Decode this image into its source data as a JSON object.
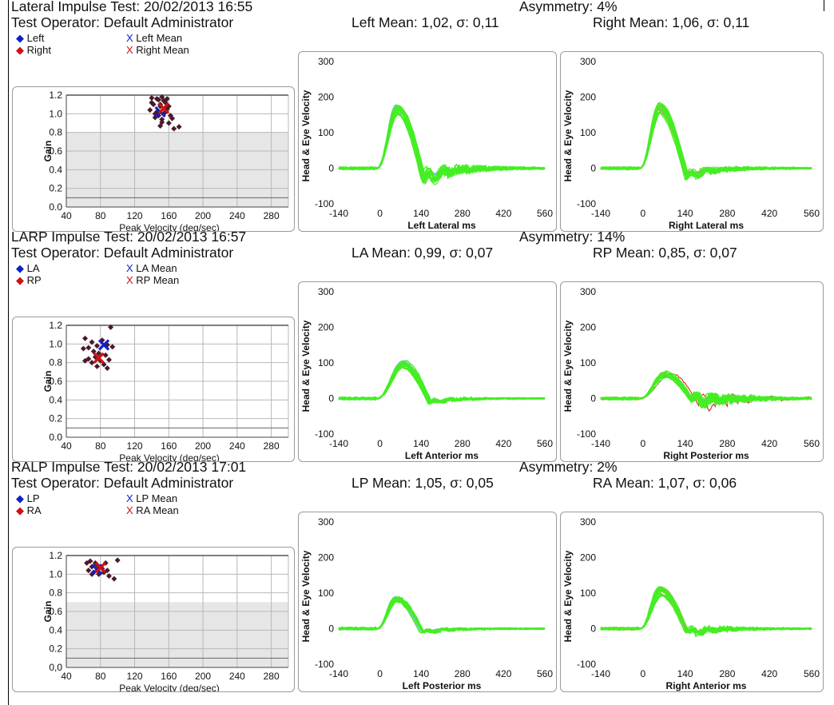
{
  "sections": [
    {
      "test_label": "Lateral Impulse Test:",
      "test_datetime": "20/02/2013 16:55",
      "operator_label": "Test Operator:",
      "operator_name": "Default Administrator",
      "asymmetry": "Asymmetry: 4%",
      "left_mean": "Left Mean: 1,02, σ: 0,11",
      "right_mean": "Right Mean: 1,06, σ: 0,11",
      "legend": [
        "Left",
        "Right",
        "Left Mean",
        "Right Mean"
      ],
      "left_xlabel": "Left Lateral ms",
      "right_xlabel": "Right Lateral ms"
    },
    {
      "test_label": "LARP Impulse Test:",
      "test_datetime": "20/02/2013 16:57",
      "operator_label": "Test Operator:",
      "operator_name": "Default Administrator",
      "asymmetry": "Asymmetry: 14%",
      "left_mean": "LA Mean: 0,99, σ: 0,07",
      "right_mean": "RP Mean: 0,85, σ: 0,07",
      "legend": [
        "LA",
        "RP",
        "LA Mean",
        "RP Mean"
      ],
      "left_xlabel": "Left Anterior ms",
      "right_xlabel": "Right Posterior ms"
    },
    {
      "test_label": "RALP Impulse Test:",
      "test_datetime": "20/02/2013 17:01",
      "operator_label": "Test Operator:",
      "operator_name": "Default Administrator",
      "asymmetry": "Asymmetry: 2%",
      "left_mean": "LP Mean: 1,05, σ: 0,05",
      "right_mean": "RA Mean: 1,07, σ: 0,06",
      "legend": [
        "LP",
        "RA",
        "LP Mean",
        "RA Mean"
      ],
      "left_xlabel": "Left Posterior ms",
      "right_xlabel": "Right Anterior ms"
    }
  ],
  "colors": {
    "left_marker": "#1020c8",
    "right_marker": "#d01010",
    "dot": "#4a1a2a",
    "left_traces": "#44ee22",
    "left_head": "#88bbee",
    "right_traces": "#44ee22",
    "right_head": "#e88866",
    "right_head_red": "#dd2222",
    "shade": "#e6e6e6"
  },
  "chart_data": [
    {
      "type": "scatter",
      "section": 0,
      "xlabel": "Peak Velocity (deg/sec)",
      "ylabel": "Gain",
      "x_ticks": [
        40,
        80,
        120,
        160,
        200,
        240,
        280
      ],
      "y_ticks": [
        "0.0",
        "0.2",
        "0.4",
        "0.6",
        "0.8",
        "1.0",
        "1.2"
      ],
      "xlim": [
        40,
        300
      ],
      "ylim": [
        0,
        1.2
      ],
      "shaded_below": 0.8,
      "series": [
        {
          "name": "Left",
          "points": [
            [
              140,
              1.17
            ],
            [
              148,
              1.15
            ],
            [
              152,
              1.18
            ],
            [
              156,
              1.12
            ],
            [
              142,
              1.1
            ],
            [
              150,
              1.08
            ],
            [
              158,
              1.05
            ],
            [
              146,
              1.02
            ],
            [
              154,
              1.0
            ],
            [
              162,
              0.98
            ],
            [
              144,
              0.96
            ],
            [
              152,
              0.94
            ],
            [
              160,
              0.9
            ],
            [
              150,
              0.87
            ],
            [
              172,
              0.86
            ],
            [
              138,
              1.04
            ]
          ]
        },
        {
          "name": "Right",
          "points": [
            [
              146,
              1.16
            ],
            [
              154,
              1.14
            ],
            [
              150,
              1.1
            ],
            [
              160,
              1.08
            ],
            [
              156,
              1.02
            ],
            [
              144,
              1.0
            ],
            [
              148,
              0.98
            ],
            [
              164,
              0.95
            ],
            [
              152,
              0.91
            ],
            [
              166,
              0.84
            ],
            [
              140,
              1.12
            ],
            [
              158,
              1.16
            ]
          ]
        }
      ],
      "means": [
        {
          "name": "Left Mean",
          "x": 150,
          "y": 1.02
        },
        {
          "name": "Right Mean",
          "x": 154,
          "y": 1.06
        }
      ]
    },
    {
      "type": "line",
      "section": 0,
      "side": "left",
      "ylabel": "Head & Eye Velocity",
      "x_ticks": [
        -140,
        0,
        140,
        280,
        420,
        560
      ],
      "y_ticks": [
        -100,
        0,
        100,
        200,
        300
      ],
      "xlim": [
        -140,
        560
      ],
      "ylim": [
        -100,
        300
      ],
      "peak": {
        "x": 60,
        "y": 170
      },
      "undershoot": -40,
      "oscillation": "high",
      "spread": 20
    },
    {
      "type": "line",
      "section": 0,
      "side": "right",
      "ylabel": "Head & Eye Velocity",
      "x_ticks": [
        -140,
        0,
        140,
        280,
        420,
        560
      ],
      "y_ticks": [
        -100,
        0,
        100,
        200,
        300
      ],
      "xlim": [
        -140,
        560
      ],
      "ylim": [
        -100,
        300
      ],
      "peak": {
        "x": 55,
        "y": 175
      },
      "undershoot": -30,
      "oscillation": "medium",
      "spread": 22
    },
    {
      "type": "scatter",
      "section": 1,
      "xlabel": "Peak Velocity (deg/sec)",
      "ylabel": "Gain",
      "x_ticks": [
        40,
        80,
        120,
        160,
        200,
        240,
        280
      ],
      "y_ticks": [
        "0.0",
        "0.2",
        "0.4",
        "0.6",
        "0.8",
        "1.0",
        "1.2"
      ],
      "xlim": [
        40,
        300
      ],
      "ylim": [
        0,
        1.2
      ],
      "shaded_below": 0.0,
      "series": [
        {
          "name": "LA",
          "points": [
            [
              62,
              1.06
            ],
            [
              70,
              1.02
            ],
            [
              76,
              0.98
            ],
            [
              66,
              0.96
            ],
            [
              82,
              1.04
            ],
            [
              88,
              0.99
            ],
            [
              94,
              0.97
            ],
            [
              72,
              0.92
            ],
            [
              78,
              0.9
            ],
            [
              60,
              0.95
            ],
            [
              92,
              1.18
            ]
          ]
        },
        {
          "name": "RP",
          "points": [
            [
              66,
              0.84
            ],
            [
              74,
              0.86
            ],
            [
              80,
              0.82
            ],
            [
              86,
              0.88
            ],
            [
              70,
              0.8
            ],
            [
              84,
              0.78
            ],
            [
              88,
              0.74
            ],
            [
              76,
              0.76
            ],
            [
              90,
              0.83
            ],
            [
              62,
              0.82
            ]
          ]
        }
      ],
      "means": [
        {
          "name": "LA Mean",
          "x": 84,
          "y": 0.99
        },
        {
          "name": "RP Mean",
          "x": 78,
          "y": 0.85
        }
      ]
    },
    {
      "type": "line",
      "section": 1,
      "side": "left",
      "ylabel": "Head & Eye Velocity",
      "x_ticks": [
        -140,
        0,
        140,
        280,
        420,
        560
      ],
      "y_ticks": [
        -100,
        0,
        100,
        200,
        300
      ],
      "xlim": [
        -140,
        560
      ],
      "ylim": [
        -100,
        300
      ],
      "peak": {
        "x": 80,
        "y": 100
      },
      "undershoot": -15,
      "oscillation": "low",
      "spread": 14
    },
    {
      "type": "line",
      "section": 1,
      "side": "right",
      "ylabel": "Head & Eye Velocity",
      "x_ticks": [
        -140,
        0,
        140,
        280,
        420,
        560
      ],
      "y_ticks": [
        -100,
        0,
        100,
        200,
        300
      ],
      "xlim": [
        -140,
        560
      ],
      "ylim": [
        -100,
        300
      ],
      "peak": {
        "x": 75,
        "y": 70
      },
      "undershoot": -10,
      "oscillation": "high",
      "spread": 12
    },
    {
      "type": "scatter",
      "section": 2,
      "xlabel": "Peak Velocity (deg/sec)",
      "ylabel": "Gain",
      "x_ticks": [
        40,
        80,
        120,
        160,
        200,
        240,
        280
      ],
      "y_ticks": [
        "0,0",
        "0.2",
        "0.4",
        "0.6",
        "0.8",
        "1.0",
        "1.2"
      ],
      "xlim": [
        40,
        300
      ],
      "ylim": [
        0,
        1.2
      ],
      "shaded_below": 0.7,
      "series": [
        {
          "name": "LP",
          "points": [
            [
              64,
              1.12
            ],
            [
              70,
              1.08
            ],
            [
              76,
              1.1
            ],
            [
              82,
              1.06
            ],
            [
              88,
              1.04
            ],
            [
              72,
              1.02
            ],
            [
              78,
              1.0
            ],
            [
              86,
              1.12
            ],
            [
              66,
              1.04
            ]
          ]
        },
        {
          "name": "RA",
          "points": [
            [
              68,
              1.14
            ],
            [
              74,
              1.12
            ],
            [
              80,
              1.08
            ],
            [
              84,
              1.02
            ],
            [
              90,
              0.98
            ],
            [
              96,
              0.95
            ],
            [
              100,
              1.15
            ],
            [
              70,
              1.0
            ]
          ]
        }
      ],
      "means": [
        {
          "name": "LP Mean",
          "x": 76,
          "y": 1.05
        },
        {
          "name": "RA Mean",
          "x": 80,
          "y": 1.07
        }
      ]
    },
    {
      "type": "line",
      "section": 2,
      "side": "left",
      "ylabel": "Head & Eye Velocity",
      "x_ticks": [
        -140,
        0,
        140,
        280,
        420,
        560
      ],
      "y_ticks": [
        -100,
        0,
        100,
        200,
        300
      ],
      "xlim": [
        -140,
        560
      ],
      "ylim": [
        -100,
        300
      ],
      "peak": {
        "x": 55,
        "y": 85
      },
      "undershoot": -12,
      "oscillation": "low",
      "spread": 10
    },
    {
      "type": "line",
      "section": 2,
      "side": "right",
      "ylabel": "Head & Eye Velocity",
      "x_ticks": [
        -140,
        0,
        140,
        280,
        420,
        560
      ],
      "y_ticks": [
        -100,
        0,
        100,
        200,
        300
      ],
      "xlim": [
        -140,
        560
      ],
      "ylim": [
        -100,
        300
      ],
      "peak": {
        "x": 60,
        "y": 110
      },
      "undershoot": -15,
      "oscillation": "medium",
      "spread": 18
    }
  ]
}
